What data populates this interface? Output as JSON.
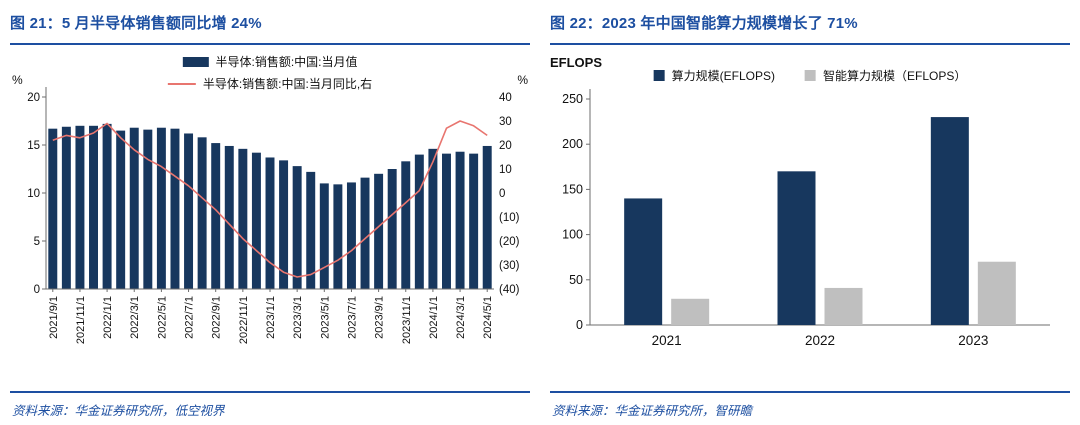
{
  "colors": {
    "title_blue": "#1D4FA1",
    "navy": "#17375E",
    "line_red": "#E8756F",
    "gray_bar": "#BFBFBF",
    "axis_line": "#6E6E6E",
    "axis_text": "#111111"
  },
  "left_panel": {
    "title": "图 21：5 月半导体销售额同比增 24%",
    "unit_left": "%",
    "unit_right": "%",
    "source": "资料来源：华金证券研究所，低空视界"
  },
  "right_panel": {
    "title": "图 22：2023 年中国智能算力规模增长了 71%",
    "unit": "EFLOPS",
    "source": "资料来源：华金证券研究所，智研瞻"
  },
  "chart_data": [
    {
      "type": "bar+line",
      "title": "5 月半导体销售额同比增 24%",
      "legend": [
        {
          "label": "半导体:销售额:中国:当月值",
          "marker": "bar",
          "color": "#17375E"
        },
        {
          "label": "半导体:销售额:中国:当月同比,右",
          "marker": "line",
          "color": "#E8756F"
        }
      ],
      "x": [
        "2021/9/1",
        "2021/10/1",
        "2021/11/1",
        "2021/12/1",
        "2022/1/1",
        "2022/2/1",
        "2022/3/1",
        "2022/4/1",
        "2022/5/1",
        "2022/6/1",
        "2022/7/1",
        "2022/8/1",
        "2022/9/1",
        "2022/10/1",
        "2022/11/1",
        "2022/12/1",
        "2023/1/1",
        "2023/2/1",
        "2023/3/1",
        "2023/4/1",
        "2023/5/1",
        "2023/6/1",
        "2023/7/1",
        "2023/8/1",
        "2023/9/1",
        "2023/10/1",
        "2023/11/1",
        "2023/12/1",
        "2024/1/1",
        "2024/2/1",
        "2024/3/1",
        "2024/4/1",
        "2024/5/1"
      ],
      "x_tick_every": 2,
      "bar_series": {
        "name": "半导体:销售额:中国:当月值",
        "axis": "left",
        "values": [
          16.7,
          16.9,
          17.0,
          17.0,
          17.2,
          16.5,
          16.8,
          16.6,
          16.8,
          16.7,
          16.2,
          15.8,
          15.2,
          14.9,
          14.6,
          14.2,
          13.7,
          13.4,
          12.8,
          12.2,
          11.0,
          10.9,
          11.1,
          11.6,
          12.0,
          12.5,
          13.3,
          14.0,
          14.6,
          14.1,
          14.3,
          14.1,
          14.9
        ]
      },
      "line_series": {
        "name": "半导体:销售额:中国:当月同比,右",
        "axis": "right",
        "values": [
          22,
          24,
          23,
          25,
          29,
          23,
          18,
          14,
          11,
          7,
          3,
          -2,
          -7,
          -13,
          -19,
          -24,
          -29,
          -33,
          -35,
          -34,
          -31,
          -28,
          -24,
          -19,
          -14,
          -9,
          -4,
          1,
          13,
          27,
          30,
          28,
          24
        ]
      },
      "left_axis": {
        "unit": "%",
        "min": 0,
        "max": 20,
        "ticks": [
          20,
          15,
          10,
          5,
          0
        ]
      },
      "right_axis": {
        "unit": "%",
        "min": -40,
        "max": 40,
        "ticks": [
          40,
          30,
          20,
          10,
          0,
          -10,
          -20,
          -30,
          -40
        ],
        "negative_format": "parentheses"
      }
    },
    {
      "type": "bar",
      "title": "2023 年中国智能算力规模增长了 71%",
      "unit": "EFLOPS",
      "categories": [
        "2021",
        "2022",
        "2023"
      ],
      "series": [
        {
          "name": "算力规模(EFLOPS)",
          "color": "#17375E",
          "values": [
            140,
            170,
            230
          ]
        },
        {
          "name": "智能算力规模（EFLOPS）",
          "color": "#BFBFBF",
          "values": [
            29,
            41,
            70
          ]
        }
      ],
      "y_axis": {
        "min": 0,
        "max": 250,
        "ticks": [
          250,
          200,
          150,
          100,
          50,
          0
        ]
      }
    }
  ]
}
